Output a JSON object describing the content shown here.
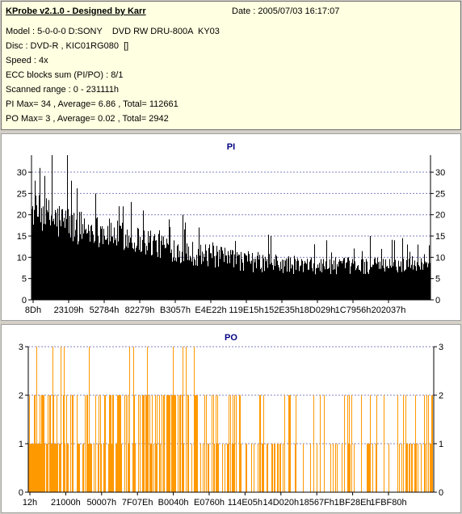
{
  "info": {
    "title": "KProbe v2.1.0 - Designed by Karr",
    "date": "Date : 2005/07/03 16:17:07",
    "lines": [
      "Model : 5-0-0-0 D:SONY    DVD RW DRU-800A  KY03",
      "Disc : DVD-R , KIC01RG080  []",
      "Speed : 4x",
      "ECC blocks sum (PI/PO) : 8/1",
      "Scanned range : 0 - 231111h",
      "PI Max= 34 , Average= 6.86 , Total= 112661",
      "PO Max= 3 , Average= 0.02 , Total= 2942"
    ]
  },
  "chart_data": [
    {
      "type": "bar",
      "title": "PI",
      "xlabel": "",
      "ylabel": "",
      "ylim": [
        0,
        34
      ],
      "yticks": [
        0,
        5,
        10,
        15,
        20,
        25,
        30
      ],
      "x_tick_labels": [
        "8Dh",
        "23109h",
        "52784h",
        "82279h",
        "B3057h",
        "E4E22h",
        "119E15h",
        "152E35h",
        "18D029h",
        "1C7956h",
        "202037h"
      ],
      "color": "#000000",
      "grid": true,
      "max": 34,
      "average": 6.86,
      "profile": [
        {
          "pos": 0.0,
          "lo": 17,
          "hi": 25
        },
        {
          "pos": 0.05,
          "lo": 14,
          "hi": 24
        },
        {
          "pos": 0.1,
          "lo": 13,
          "hi": 22
        },
        {
          "pos": 0.2,
          "lo": 12,
          "hi": 19
        },
        {
          "pos": 0.3,
          "lo": 10,
          "hi": 17
        },
        {
          "pos": 0.4,
          "lo": 8,
          "hi": 14
        },
        {
          "pos": 0.5,
          "lo": 7,
          "hi": 12
        },
        {
          "pos": 0.6,
          "lo": 6,
          "hi": 11
        },
        {
          "pos": 0.7,
          "lo": 6,
          "hi": 10
        },
        {
          "pos": 0.8,
          "lo": 6,
          "hi": 10
        },
        {
          "pos": 0.9,
          "lo": 6,
          "hi": 10
        },
        {
          "pos": 1.0,
          "lo": 7,
          "hi": 11
        }
      ],
      "spikes": [
        {
          "pos": 0.02,
          "value": 31
        },
        {
          "pos": 0.05,
          "value": 34
        },
        {
          "pos": 0.09,
          "value": 34
        },
        {
          "pos": 0.1,
          "value": 28
        },
        {
          "pos": 0.16,
          "value": 25
        },
        {
          "pos": 0.22,
          "value": 22
        },
        {
          "pos": 0.25,
          "value": 23
        },
        {
          "pos": 0.28,
          "value": 21
        },
        {
          "pos": 0.38,
          "value": 20
        },
        {
          "pos": 0.42,
          "value": 17
        },
        {
          "pos": 0.6,
          "value": 15
        },
        {
          "pos": 0.74,
          "value": 14
        },
        {
          "pos": 0.85,
          "value": 15
        },
        {
          "pos": 0.91,
          "value": 14
        },
        {
          "pos": 0.97,
          "value": 13
        }
      ]
    },
    {
      "type": "bar",
      "title": "PO",
      "xlabel": "",
      "ylabel": "",
      "ylim": [
        0,
        3
      ],
      "yticks": [
        0,
        1,
        2,
        3
      ],
      "x_tick_labels": [
        "12h",
        "21000h",
        "50007h",
        "7F07Eh",
        "B0040h",
        "E0760h",
        "114E05h",
        "14D020h",
        "18567Fh",
        "1BF28Eh",
        "1FBF80h"
      ],
      "color": "#ff9900",
      "grid": true,
      "max": 3,
      "average": 0.02,
      "density": [
        {
          "pos": 0.0,
          "p1": 0.85,
          "p2": 0.35,
          "p3": 0.05
        },
        {
          "pos": 0.15,
          "p1": 0.6,
          "p2": 0.35,
          "p3": 0.03
        },
        {
          "pos": 0.3,
          "p1": 0.6,
          "p2": 0.35,
          "p3": 0.02
        },
        {
          "pos": 0.45,
          "p1": 0.45,
          "p2": 0.2,
          "p3": 0.01
        },
        {
          "pos": 0.6,
          "p1": 0.35,
          "p2": 0.12,
          "p3": 0.0
        },
        {
          "pos": 0.75,
          "p1": 0.3,
          "p2": 0.1,
          "p3": 0.0
        },
        {
          "pos": 0.9,
          "p1": 0.35,
          "p2": 0.12,
          "p3": 0.0
        },
        {
          "pos": 1.0,
          "p1": 0.55,
          "p2": 0.2,
          "p3": 0.0
        }
      ],
      "spikes": [
        {
          "pos": 0.02,
          "value": 3
        },
        {
          "pos": 0.06,
          "value": 3
        },
        {
          "pos": 0.08,
          "value": 3
        },
        {
          "pos": 0.15,
          "value": 3
        },
        {
          "pos": 0.25,
          "value": 3
        },
        {
          "pos": 0.26,
          "value": 3
        },
        {
          "pos": 0.41,
          "value": 3
        }
      ]
    }
  ]
}
